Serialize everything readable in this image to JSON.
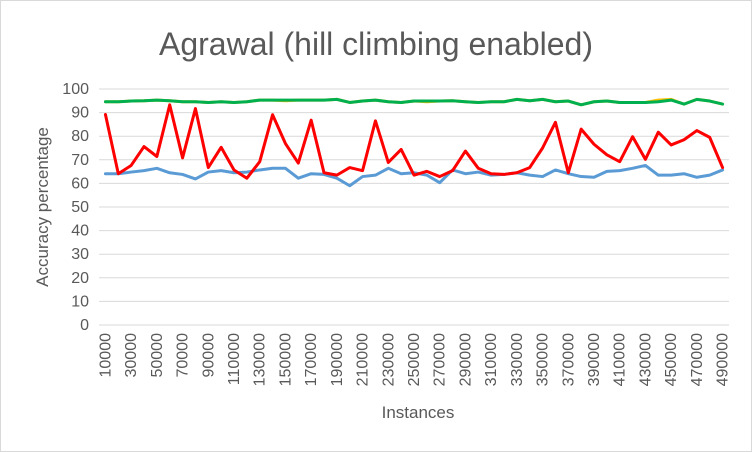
{
  "chart_data": {
    "type": "line",
    "title": "Agrawal (hill climbing enabled)",
    "xlabel": "Instances",
    "ylabel": "Accuracy percentage",
    "ylim": [
      0,
      100
    ],
    "yticks": [
      0,
      10,
      20,
      30,
      40,
      50,
      60,
      70,
      80,
      90,
      100
    ],
    "grid": true,
    "legend": "none",
    "categories": [
      10000,
      20000,
      30000,
      40000,
      50000,
      60000,
      70000,
      80000,
      90000,
      100000,
      110000,
      120000,
      130000,
      140000,
      150000,
      160000,
      170000,
      180000,
      190000,
      200000,
      210000,
      220000,
      230000,
      240000,
      250000,
      260000,
      270000,
      280000,
      290000,
      300000,
      310000,
      320000,
      330000,
      340000,
      350000,
      360000,
      370000,
      380000,
      390000,
      400000,
      410000,
      420000,
      430000,
      440000,
      450000,
      460000,
      470000,
      480000,
      490000
    ],
    "x_tick_labels": [
      "10000",
      "30000",
      "50000",
      "70000",
      "90000",
      "110000",
      "130000",
      "150000",
      "170000",
      "190000",
      "210000",
      "230000",
      "250000",
      "270000",
      "290000",
      "310000",
      "330000",
      "350000",
      "370000",
      "390000",
      "410000",
      "430000",
      "450000",
      "470000",
      "490000"
    ],
    "series": [
      {
        "color": "#ffc000",
        "values": [
          94.6,
          94.6,
          94.9,
          95.0,
          95.3,
          95.0,
          94.6,
          94.6,
          94.3,
          94.6,
          94.3,
          94.6,
          95.3,
          95.3,
          95.0,
          95.3,
          95.3,
          95.3,
          95.6,
          94.3,
          94.9,
          95.3,
          94.6,
          94.3,
          94.9,
          94.6,
          94.9,
          95.0,
          94.6,
          94.3,
          94.6,
          94.6,
          95.6,
          95.0,
          95.6,
          94.6,
          94.9,
          93.3,
          94.6,
          94.9,
          94.3,
          94.3,
          94.3,
          95.3,
          95.6,
          93.6,
          95.6,
          94.9,
          93.6
        ]
      },
      {
        "color": "#5b9bd5",
        "values": [
          64.1,
          64.1,
          64.8,
          65.4,
          66.4,
          64.5,
          63.8,
          61.9,
          64.8,
          65.4,
          64.5,
          64.8,
          65.7,
          66.4,
          66.4,
          62.2,
          64.1,
          63.8,
          62.2,
          59.0,
          62.9,
          63.5,
          66.4,
          64.1,
          64.5,
          63.5,
          60.3,
          65.7,
          64.1,
          64.8,
          63.5,
          63.8,
          64.5,
          63.5,
          62.9,
          65.7,
          64.1,
          62.9,
          62.6,
          65.1,
          65.4,
          66.4,
          67.6,
          63.5,
          63.5,
          64.1,
          62.6,
          63.5,
          65.7
        ]
      },
      {
        "color": "#ff0000",
        "values": [
          89.2,
          64.1,
          67.6,
          75.6,
          71.4,
          93.3,
          70.8,
          91.7,
          66.7,
          75.3,
          65.7,
          62.2,
          69.2,
          89.1,
          76.9,
          68.6,
          86.8,
          64.5,
          63.5,
          66.7,
          65.4,
          86.5,
          68.9,
          74.4,
          63.5,
          65.1,
          62.9,
          65.4,
          73.7,
          66.4,
          64.1,
          63.8,
          64.5,
          66.7,
          75.0,
          85.9,
          64.5,
          83.0,
          76.6,
          72.1,
          69.2,
          79.8,
          70.2,
          81.7,
          76.3,
          78.5,
          82.4,
          79.5,
          66.7
        ]
      },
      {
        "color": "#00b050",
        "values": [
          94.6,
          94.6,
          94.9,
          95.0,
          95.3,
          95.0,
          94.6,
          94.6,
          94.3,
          94.6,
          94.3,
          94.6,
          95.3,
          95.3,
          95.3,
          95.3,
          95.3,
          95.3,
          95.6,
          94.3,
          94.9,
          95.3,
          94.6,
          94.3,
          94.9,
          94.9,
          94.9,
          95.0,
          94.6,
          94.3,
          94.6,
          94.6,
          95.6,
          95.0,
          95.6,
          94.6,
          94.9,
          93.3,
          94.6,
          94.9,
          94.3,
          94.3,
          94.3,
          94.6,
          95.3,
          93.6,
          95.6,
          94.9,
          93.6
        ]
      }
    ]
  }
}
